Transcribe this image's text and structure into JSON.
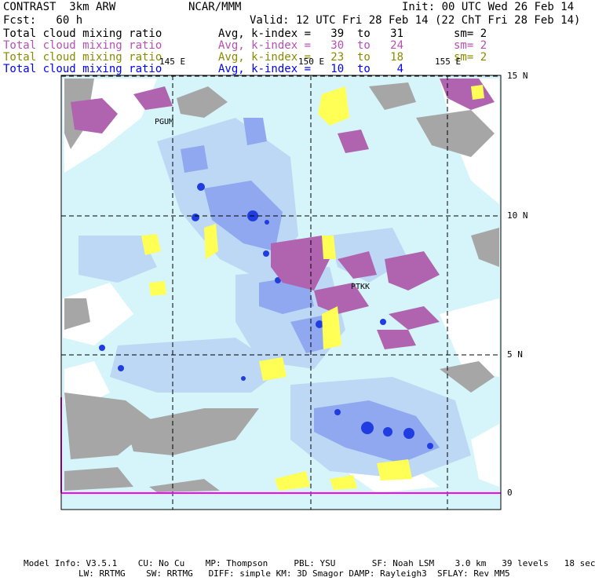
{
  "header": {
    "model": "CONTRAST  3km ARW",
    "org": "NCAR/MMM",
    "init": "Init: 00 UTC Wed 26 Feb 14",
    "fcst": "Fcst:   60 h",
    "valid": "Valid: 12 UTC Fri 28 Feb 14 (22 ChT Fri 28 Feb 14)"
  },
  "fields": [
    {
      "name": "Total cloud mixing ratio",
      "stat": "Avg, k-index =   39  to   31",
      "sm": "sm= 2",
      "color": "#000000"
    },
    {
      "name": "Total cloud mixing ratio",
      "stat": "Avg, k-index =   30  to   24",
      "sm": "sm= 2",
      "color": "#b64fb6"
    },
    {
      "name": "Total cloud mixing ratio",
      "stat": "Avg, k-index =   23  to   18",
      "sm": "sm= 2",
      "color": "#8a8a00"
    },
    {
      "name": "Total cloud mixing ratio",
      "stat": "Avg, k-index =   10  to    4",
      "sm": "",
      "color": "#0000ff"
    }
  ],
  "axes": {
    "lon_labels": [
      "145 E",
      "150 E",
      "155 E"
    ],
    "lat_labels": [
      "15 N",
      "10 N",
      "5 N",
      "0"
    ]
  },
  "stations": [
    "PGUM",
    "PTKK"
  ],
  "footer": {
    "line1": "Model Info: V3.5.1    CU: No Cu    MP: Thompson     PBL: YSU       SF: Noah LSM    3.0 km   39 levels   18 sec",
    "line2": "LW: RRTMG    SW: RRTMG   DIFF: simple KM: 3D Smagor DAMP: Rayleigh3  SFLAY: Rev MM5"
  },
  "colors": {
    "base": "#d6f5fa",
    "light_blue": "#bcd8f5",
    "mid_blue": "#8fa8f0",
    "deep_blue": "#1f3de0",
    "gray": "#a6a6a6",
    "purple": "#b064b0",
    "yellow": "#ffff55",
    "magenta": "#ff00ff"
  }
}
